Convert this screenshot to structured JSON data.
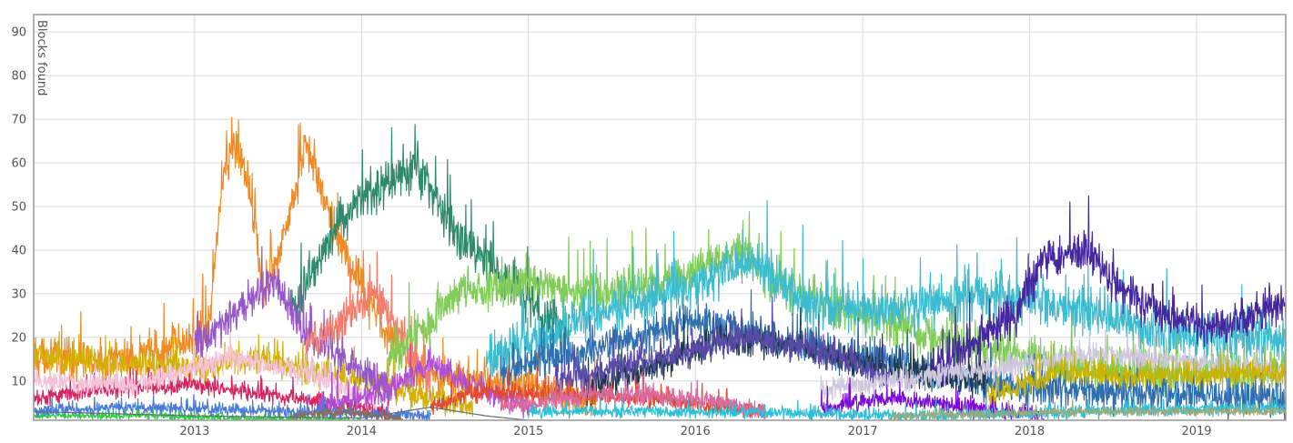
{
  "chart_data": {
    "type": "line",
    "title": "",
    "xlabel": "",
    "ylabel": "Blocks found",
    "xlim": [
      "2012-01-15",
      "2019-07-15"
    ],
    "ylim": [
      1,
      94
    ],
    "y_ticks": [
      10,
      20,
      30,
      40,
      50,
      60,
      70,
      80,
      90
    ],
    "x_ticks": [
      {
        "date": "2013-01-01",
        "label": "2013"
      },
      {
        "date": "2014-01-01",
        "label": "2014"
      },
      {
        "date": "2015-01-01",
        "label": "2015"
      },
      {
        "date": "2016-01-01",
        "label": "2016"
      },
      {
        "date": "2017-01-01",
        "label": "2017"
      },
      {
        "date": "2018-01-01",
        "label": "2018"
      },
      {
        "date": "2019-01-01",
        "label": "2019"
      }
    ],
    "grid": true,
    "legend": "none",
    "series": [
      {
        "color": "#f08a24",
        "start": "2012-01-15",
        "end": "2015-06-01",
        "points": [
          [
            "2012-01-15",
            16
          ],
          [
            "2012-07-01",
            14
          ],
          [
            "2012-12-01",
            18
          ],
          [
            "2013-02-01",
            22
          ],
          [
            "2013-03-01",
            55
          ],
          [
            "2013-04-01",
            65
          ],
          [
            "2013-05-01",
            55
          ],
          [
            "2013-06-01",
            30
          ],
          [
            "2013-07-01",
            38
          ],
          [
            "2013-08-01",
            50
          ],
          [
            "2013-09-01",
            65
          ],
          [
            "2013-10-01",
            55
          ],
          [
            "2013-11-01",
            45
          ],
          [
            "2013-12-01",
            38
          ],
          [
            "2014-02-01",
            25
          ],
          [
            "2014-05-01",
            12
          ],
          [
            "2015-06-01",
            6
          ]
        ],
        "amp": 7
      },
      {
        "color": "#d4b106",
        "start": "2012-01-15",
        "end": "2014-09-01",
        "points": [
          [
            "2012-01-15",
            16
          ],
          [
            "2012-06-01",
            14
          ],
          [
            "2013-01-01",
            13
          ],
          [
            "2013-06-01",
            15
          ],
          [
            "2014-01-01",
            10
          ],
          [
            "2014-09-01",
            4
          ]
        ],
        "amp": 5
      },
      {
        "color": "#d6245f",
        "start": "2012-01-15",
        "end": "2014-03-01",
        "points": [
          [
            "2012-01-15",
            6
          ],
          [
            "2012-06-01",
            8
          ],
          [
            "2013-01-01",
            9
          ],
          [
            "2013-06-01",
            7
          ],
          [
            "2014-03-01",
            3
          ]
        ],
        "amp": 3
      },
      {
        "color": "#f3c1d8",
        "start": "2012-01-15",
        "end": "2014-02-01",
        "points": [
          [
            "2012-01-15",
            10
          ],
          [
            "2012-08-01",
            9
          ],
          [
            "2013-04-01",
            15
          ],
          [
            "2013-09-01",
            12
          ],
          [
            "2014-02-01",
            5
          ]
        ],
        "amp": 4
      },
      {
        "color": "#2f8a6b",
        "start": "2013-08-01",
        "end": "2015-04-01",
        "points": [
          [
            "2013-08-01",
            25
          ],
          [
            "2013-11-01",
            45
          ],
          [
            "2014-01-01",
            52
          ],
          [
            "2014-03-01",
            55
          ],
          [
            "2014-05-01",
            60
          ],
          [
            "2014-07-01",
            48
          ],
          [
            "2014-09-01",
            40
          ],
          [
            "2014-12-01",
            32
          ],
          [
            "2015-04-01",
            20
          ]
        ],
        "amp": 8
      },
      {
        "color": "#9658c9",
        "start": "2013-01-01",
        "end": "2014-03-01",
        "points": [
          [
            "2013-01-01",
            18
          ],
          [
            "2013-05-01",
            28
          ],
          [
            "2013-07-01",
            33
          ],
          [
            "2013-09-01",
            20
          ],
          [
            "2014-03-01",
            8
          ]
        ],
        "amp": 6
      },
      {
        "color": "#f47c6a",
        "start": "2013-09-01",
        "end": "2014-06-01",
        "points": [
          [
            "2013-09-01",
            18
          ],
          [
            "2013-12-01",
            25
          ],
          [
            "2014-02-01",
            30
          ],
          [
            "2014-04-01",
            20
          ],
          [
            "2014-06-01",
            10
          ]
        ],
        "amp": 6
      },
      {
        "color": "#b04fd6",
        "start": "2013-10-01",
        "end": "2015-01-01",
        "points": [
          [
            "2013-10-01",
            4
          ],
          [
            "2014-03-01",
            8
          ],
          [
            "2014-06-01",
            14
          ],
          [
            "2014-09-01",
            9
          ],
          [
            "2015-01-01",
            4
          ]
        ],
        "amp": 4
      },
      {
        "color": "#82cc5a",
        "start": "2014-03-01",
        "end": "2019-07-15",
        "points": [
          [
            "2014-03-01",
            15
          ],
          [
            "2014-08-01",
            30
          ],
          [
            "2015-01-01",
            32
          ],
          [
            "2015-07-01",
            30
          ],
          [
            "2016-01-01",
            35
          ],
          [
            "2016-04-01",
            40
          ],
          [
            "2016-08-01",
            30
          ],
          [
            "2017-06-01",
            20
          ],
          [
            "2018-06-01",
            12
          ],
          [
            "2019-07-15",
            12
          ]
        ],
        "amp": 7
      },
      {
        "color": "#3dbcd0",
        "start": "2014-10-01",
        "end": "2019-07-15",
        "points": [
          [
            "2014-10-01",
            15
          ],
          [
            "2015-06-01",
            25
          ],
          [
            "2016-01-01",
            32
          ],
          [
            "2016-05-01",
            38
          ],
          [
            "2016-09-01",
            28
          ],
          [
            "2017-03-01",
            26
          ],
          [
            "2017-09-01",
            30
          ],
          [
            "2018-03-01",
            28
          ],
          [
            "2018-09-01",
            22
          ],
          [
            "2019-03-01",
            20
          ],
          [
            "2019-07-15",
            20
          ]
        ],
        "amp": 8
      },
      {
        "color": "#2f6fb0",
        "start": "2014-11-01",
        "end": "2019-07-15",
        "points": [
          [
            "2014-11-01",
            12
          ],
          [
            "2015-06-01",
            18
          ],
          [
            "2016-01-01",
            24
          ],
          [
            "2016-06-01",
            20
          ],
          [
            "2017-01-01",
            15
          ],
          [
            "2017-06-01",
            12
          ],
          [
            "2018-01-01",
            8
          ],
          [
            "2019-07-15",
            6
          ]
        ],
        "amp": 6
      },
      {
        "color": "#1e3a4c",
        "start": "2015-05-01",
        "end": "2017-10-01",
        "points": [
          [
            "2015-05-01",
            8
          ],
          [
            "2015-11-01",
            14
          ],
          [
            "2016-03-01",
            20
          ],
          [
            "2016-08-01",
            18
          ],
          [
            "2017-03-01",
            12
          ],
          [
            "2017-10-01",
            10
          ]
        ],
        "amp": 5
      },
      {
        "color": "#5a4aa8",
        "start": "2015-03-01",
        "end": "2017-03-01",
        "points": [
          [
            "2015-03-01",
            10
          ],
          [
            "2015-09-01",
            14
          ],
          [
            "2016-05-01",
            20
          ],
          [
            "2016-11-01",
            16
          ],
          [
            "2017-03-01",
            10
          ]
        ],
        "amp": 5
      },
      {
        "color": "#e24a33",
        "start": "2014-06-01",
        "end": "2016-06-01",
        "points": [
          [
            "2014-06-01",
            4
          ],
          [
            "2014-10-01",
            8
          ],
          [
            "2015-01-01",
            7
          ],
          [
            "2015-10-01",
            6
          ],
          [
            "2016-06-01",
            3
          ]
        ],
        "amp": 3
      },
      {
        "color": "#4527a0",
        "start": "2017-06-01",
        "end": "2019-07-15",
        "points": [
          [
            "2017-06-01",
            12
          ],
          [
            "2017-12-01",
            25
          ],
          [
            "2018-02-01",
            38
          ],
          [
            "2018-05-01",
            40
          ],
          [
            "2018-08-01",
            30
          ],
          [
            "2018-11-01",
            25
          ],
          [
            "2019-03-01",
            22
          ],
          [
            "2019-07-15",
            28
          ]
        ],
        "amp": 7
      },
      {
        "color": "#cfc7dd",
        "start": "2016-10-01",
        "end": "2019-07-15",
        "points": [
          [
            "2016-10-01",
            8
          ],
          [
            "2017-03-01",
            10
          ],
          [
            "2018-01-01",
            14
          ],
          [
            "2018-06-01",
            16
          ],
          [
            "2019-01-01",
            14
          ],
          [
            "2019-07-15",
            12
          ]
        ],
        "amp": 4
      },
      {
        "color": "#c9b300",
        "start": "2017-10-01",
        "end": "2019-07-15",
        "points": [
          [
            "2017-10-01",
            6
          ],
          [
            "2018-03-01",
            12
          ],
          [
            "2018-09-01",
            11
          ],
          [
            "2019-07-15",
            12
          ]
        ],
        "amp": 4
      },
      {
        "color": "#7a0dd6",
        "start": "2016-10-01",
        "end": "2018-02-01",
        "points": [
          [
            "2016-10-01",
            4
          ],
          [
            "2017-03-01",
            6
          ],
          [
            "2017-09-01",
            4
          ],
          [
            "2018-02-01",
            2
          ]
        ],
        "amp": 3
      },
      {
        "color": "#d96aa0",
        "start": "2014-11-01",
        "end": "2016-06-01",
        "points": [
          [
            "2014-11-01",
            4
          ],
          [
            "2015-06-01",
            7
          ],
          [
            "2016-01-01",
            6
          ],
          [
            "2016-06-01",
            3
          ]
        ],
        "amp": 3
      },
      {
        "color": "#2ecc40",
        "start": "2012-01-15",
        "end": "2014-01-01",
        "points": [
          [
            "2012-01-15",
            2
          ],
          [
            "2012-09-01",
            2
          ],
          [
            "2013-06-01",
            1.5
          ],
          [
            "2014-01-01",
            1
          ]
        ],
        "amp": 1.2
      },
      {
        "color": "#4a7bd8",
        "start": "2012-01-15",
        "end": "2014-06-01",
        "points": [
          [
            "2012-01-15",
            3
          ],
          [
            "2012-09-01",
            4
          ],
          [
            "2013-08-01",
            3
          ],
          [
            "2014-06-01",
            2
          ]
        ],
        "amp": 2
      },
      {
        "color": "#8a6e5a",
        "start": "2013-08-01",
        "end": "2014-04-01",
        "points": [
          [
            "2013-08-01",
            2
          ],
          [
            "2013-12-01",
            3
          ],
          [
            "2014-04-01",
            1
          ]
        ],
        "amp": 1.5
      },
      {
        "color": "#2bc0d6",
        "start": "2015-01-01",
        "end": "2019-07-15",
        "points": [
          [
            "2015-01-01",
            3
          ],
          [
            "2016-01-01",
            3
          ],
          [
            "2017-06-01",
            2
          ],
          [
            "2018-06-01",
            3
          ],
          [
            "2019-07-15",
            4
          ]
        ],
        "amp": 2
      },
      {
        "color": "#9aaa7a",
        "start": "2017-03-01",
        "end": "2019-07-15",
        "points": [
          [
            "2017-03-01",
            2
          ],
          [
            "2018-06-01",
            3
          ],
          [
            "2019-07-15",
            3
          ]
        ],
        "amp": 1.5
      },
      {
        "color": "#5f6f7f",
        "start": "2012-01-15",
        "end": "2015-01-01",
        "noise": false,
        "points": [
          [
            "2012-01-15",
            3
          ],
          [
            "2013-01-01",
            2
          ],
          [
            "2014-01-01",
            1.5
          ],
          [
            "2014-06-01",
            4
          ],
          [
            "2014-10-01",
            2
          ],
          [
            "2015-01-01",
            1
          ]
        ],
        "amp": 0
      }
    ]
  }
}
